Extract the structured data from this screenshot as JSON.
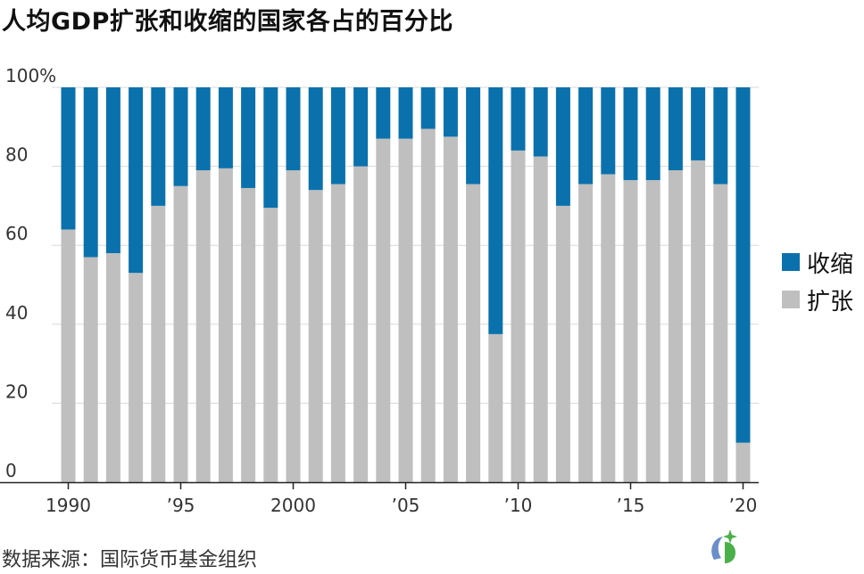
{
  "title": "人均GDP扩张和收缩的国家各占的百分比",
  "source": "数据来源：国际货币基金组织",
  "colors": {
    "contraction": "#0a71ad",
    "expansion": "#bfbfbf"
  },
  "chart_data": {
    "type": "bar",
    "stacked": true,
    "categories": [
      1990,
      1991,
      1992,
      1993,
      1994,
      1995,
      1996,
      1997,
      1998,
      1999,
      2000,
      2001,
      2002,
      2003,
      2004,
      2005,
      2006,
      2007,
      2008,
      2009,
      2010,
      2011,
      2012,
      2013,
      2014,
      2015,
      2016,
      2017,
      2018,
      2019,
      2020
    ],
    "series": [
      {
        "name": "扩张",
        "color": "#bfbfbf",
        "values": [
          64,
          57,
          58,
          53,
          70,
          75,
          79,
          79.5,
          74.5,
          69.5,
          79,
          74,
          75.5,
          80,
          87,
          87,
          89.5,
          87.5,
          75.5,
          37.5,
          84,
          82.5,
          70,
          75.5,
          78,
          76.5,
          76.5,
          79,
          81.5,
          75.5,
          10
        ]
      },
      {
        "name": "收缩",
        "color": "#0a71ad",
        "values": [
          36,
          43,
          42,
          47,
          30,
          25,
          21,
          20.5,
          25.5,
          30.5,
          21,
          26,
          24.5,
          20,
          13,
          13,
          10.5,
          12.5,
          24.5,
          62.5,
          16,
          17.5,
          30,
          24.5,
          22,
          23.5,
          23.5,
          21,
          18.5,
          24.5,
          90
        ]
      }
    ],
    "ylim": [
      0,
      100
    ],
    "yticks": [
      "100%",
      "80",
      "60",
      "40",
      "20",
      "0"
    ],
    "ytick_values": [
      100,
      80,
      60,
      40,
      20,
      0
    ],
    "xticks": [
      {
        "year": 1990,
        "label": "1990"
      },
      {
        "year": 1995,
        "label": "’95"
      },
      {
        "year": 2000,
        "label": "2000"
      },
      {
        "year": 2005,
        "label": "’05"
      },
      {
        "year": 2010,
        "label": "’10"
      },
      {
        "year": 2015,
        "label": "’15"
      },
      {
        "year": 2020,
        "label": "’20"
      }
    ],
    "legend": {
      "position": "right",
      "items": [
        "收缩",
        "扩张"
      ]
    },
    "grid": true
  }
}
